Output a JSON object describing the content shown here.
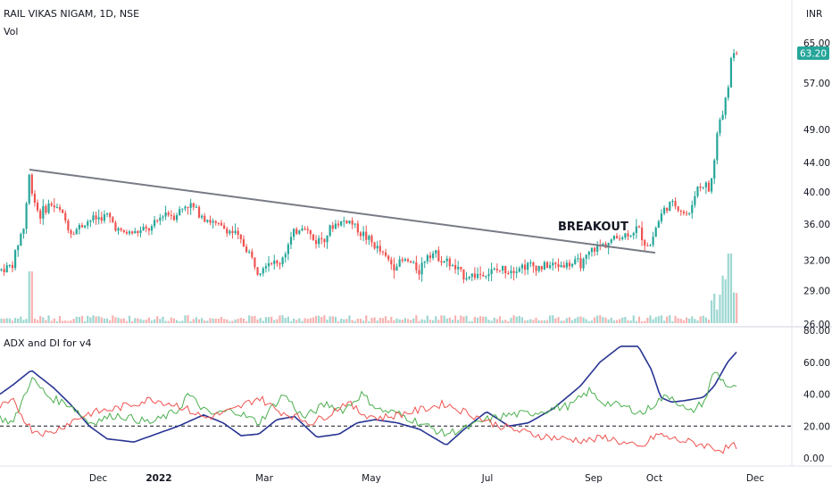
{
  "header": {
    "symbol_line": "RAIL VIKAS NIGAM, 1D, NSE",
    "volume_label": "Vol",
    "currency": "INR"
  },
  "indicator": {
    "title": "ADX and DI for v4"
  },
  "price_axis": {
    "ticks": [
      "65.00",
      "57.00",
      "49.00",
      "44.00",
      "40.00",
      "36.00",
      "32.00",
      "29.00",
      "26.00"
    ],
    "tick_values": [
      65,
      57,
      49,
      44,
      40,
      36,
      32,
      29,
      26
    ],
    "last_price": "63.20"
  },
  "adx_axis": {
    "ticks": [
      "80.00",
      "60.00",
      "40.00",
      "20.00",
      "0.00"
    ],
    "tick_values": [
      80,
      60,
      40,
      20,
      0
    ]
  },
  "time_axis": {
    "ticks": [
      "Dec",
      "2022",
      "Mar",
      "May",
      "Jul",
      "Sep",
      "Oct",
      "Dec"
    ]
  },
  "annotation": {
    "text": "BREAKOUT"
  },
  "colors": {
    "up": "#26a69a",
    "down": "#ef5350",
    "trendline": "#787b86",
    "adx": "#283593",
    "di_plus": "#4caf50",
    "di_minus": "#ef5350",
    "price_tag": "#26a69a"
  },
  "chart_data": {
    "type": "candlestick",
    "title": "RAIL VIKAS NIGAM, 1D, NSE",
    "price_range": [
      26,
      67
    ],
    "price_scale": "log",
    "price_waypoints": [
      [
        0,
        31.0
      ],
      [
        14,
        31.5
      ],
      [
        22,
        34.5
      ],
      [
        28,
        36.0
      ],
      [
        32,
        42.5
      ],
      [
        36,
        40.0
      ],
      [
        44,
        37.0
      ],
      [
        56,
        38.5
      ],
      [
        68,
        37.5
      ],
      [
        80,
        35.0
      ],
      [
        100,
        36.5
      ],
      [
        120,
        37.0
      ],
      [
        135,
        35.0
      ],
      [
        150,
        35.0
      ],
      [
        170,
        35.5
      ],
      [
        185,
        37.5
      ],
      [
        195,
        37.0
      ],
      [
        210,
        38.5
      ],
      [
        222,
        37.5
      ],
      [
        240,
        36.0
      ],
      [
        262,
        35.0
      ],
      [
        278,
        33.0
      ],
      [
        288,
        31.0
      ],
      [
        300,
        32.0
      ],
      [
        312,
        31.5
      ],
      [
        330,
        35.0
      ],
      [
        340,
        36.0
      ],
      [
        352,
        34.0
      ],
      [
        362,
        34.5
      ],
      [
        375,
        36.0
      ],
      [
        390,
        36.5
      ],
      [
        400,
        35.5
      ],
      [
        415,
        34.0
      ],
      [
        430,
        32.5
      ],
      [
        440,
        31.5
      ],
      [
        455,
        32.0
      ],
      [
        470,
        31.0
      ],
      [
        480,
        33.0
      ],
      [
        490,
        32.5
      ],
      [
        505,
        31.5
      ],
      [
        518,
        30.5
      ],
      [
        530,
        30.5
      ],
      [
        545,
        30.7
      ],
      [
        560,
        31.0
      ],
      [
        575,
        31.2
      ],
      [
        590,
        31.5
      ],
      [
        605,
        31.3
      ],
      [
        620,
        31.5
      ],
      [
        640,
        31.6
      ],
      [
        655,
        31.8
      ],
      [
        662,
        33.0
      ],
      [
        672,
        33.5
      ],
      [
        682,
        34.0
      ],
      [
        692,
        34.5
      ],
      [
        702,
        34.8
      ],
      [
        715,
        35.5
      ],
      [
        722,
        34.0
      ],
      [
        728,
        33.5
      ],
      [
        736,
        36.0
      ],
      [
        745,
        38.0
      ],
      [
        755,
        38.5
      ],
      [
        765,
        37.5
      ],
      [
        772,
        37.0
      ],
      [
        780,
        40.5
      ],
      [
        790,
        41.0
      ],
      [
        795,
        40.0
      ],
      [
        800,
        44.0
      ],
      [
        805,
        50.0
      ],
      [
        810,
        52.0
      ],
      [
        815,
        55.0
      ],
      [
        820,
        63.5
      ],
      [
        826,
        63.2
      ]
    ],
    "trendline": {
      "start": [
        "Oct 2021",
        43.0
      ],
      "end": [
        "Oct 2022",
        32.8
      ]
    },
    "last_price": 63.2,
    "series": [
      {
        "name": "ADX",
        "range": [
          0,
          80
        ],
        "points": [
          [
            0,
            40
          ],
          [
            15,
            46
          ],
          [
            35,
            55
          ],
          [
            60,
            44
          ],
          [
            80,
            33
          ],
          [
            100,
            20
          ],
          [
            120,
            12
          ],
          [
            150,
            10
          ],
          [
            175,
            15
          ],
          [
            200,
            20
          ],
          [
            228,
            27
          ],
          [
            250,
            22
          ],
          [
            270,
            14
          ],
          [
            290,
            15
          ],
          [
            310,
            24
          ],
          [
            330,
            26
          ],
          [
            355,
            13
          ],
          [
            380,
            15
          ],
          [
            400,
            22
          ],
          [
            420,
            24
          ],
          [
            445,
            22
          ],
          [
            470,
            18
          ],
          [
            500,
            8
          ],
          [
            520,
            18
          ],
          [
            545,
            29
          ],
          [
            570,
            20
          ],
          [
            592,
            22
          ],
          [
            620,
            31
          ],
          [
            650,
            45
          ],
          [
            672,
            60
          ],
          [
            695,
            70
          ],
          [
            715,
            70
          ],
          [
            730,
            55
          ],
          [
            740,
            38
          ],
          [
            752,
            35
          ],
          [
            768,
            36
          ],
          [
            788,
            38
          ],
          [
            800,
            45
          ],
          [
            815,
            60
          ],
          [
            826,
            67
          ]
        ]
      },
      {
        "name": "DI+",
        "range": [
          0,
          80
        ],
        "points": [
          [
            0,
            25
          ],
          [
            15,
            22
          ],
          [
            35,
            50
          ],
          [
            55,
            38
          ],
          [
            80,
            33
          ],
          [
            100,
            22
          ],
          [
            130,
            27
          ],
          [
            170,
            22
          ],
          [
            200,
            30
          ],
          [
            210,
            40
          ],
          [
            235,
            27
          ],
          [
            262,
            30
          ],
          [
            290,
            22
          ],
          [
            305,
            32
          ],
          [
            318,
            40
          ],
          [
            340,
            25
          ],
          [
            365,
            34
          ],
          [
            385,
            30
          ],
          [
            405,
            40
          ],
          [
            425,
            30
          ],
          [
            445,
            28
          ],
          [
            470,
            22
          ],
          [
            498,
            15
          ],
          [
            525,
            19
          ],
          [
            545,
            24
          ],
          [
            570,
            27
          ],
          [
            595,
            28
          ],
          [
            620,
            31
          ],
          [
            640,
            33
          ],
          [
            660,
            42
          ],
          [
            675,
            35
          ],
          [
            700,
            32
          ],
          [
            720,
            28
          ],
          [
            740,
            37
          ],
          [
            752,
            39
          ],
          [
            772,
            28
          ],
          [
            790,
            36
          ],
          [
            800,
            55
          ],
          [
            815,
            45
          ],
          [
            826,
            43
          ]
        ]
      },
      {
        "name": "DI-",
        "range": [
          0,
          80
        ],
        "points": [
          [
            0,
            32
          ],
          [
            15,
            35
          ],
          [
            35,
            18
          ],
          [
            55,
            15
          ],
          [
            80,
            23
          ],
          [
            100,
            28
          ],
          [
            130,
            31
          ],
          [
            170,
            37
          ],
          [
            200,
            33
          ],
          [
            230,
            25
          ],
          [
            262,
            30
          ],
          [
            290,
            38
          ],
          [
            310,
            30
          ],
          [
            330,
            26
          ],
          [
            350,
            22
          ],
          [
            370,
            28
          ],
          [
            388,
            35
          ],
          [
            405,
            28
          ],
          [
            425,
            25
          ],
          [
            445,
            27
          ],
          [
            470,
            30
          ],
          [
            498,
            34
          ],
          [
            525,
            28
          ],
          [
            550,
            22
          ],
          [
            580,
            17
          ],
          [
            605,
            14
          ],
          [
            630,
            12
          ],
          [
            660,
            11
          ],
          [
            680,
            13
          ],
          [
            700,
            9
          ],
          [
            718,
            6
          ],
          [
            736,
            15
          ],
          [
            752,
            12
          ],
          [
            772,
            10
          ],
          [
            790,
            8
          ],
          [
            808,
            5
          ],
          [
            826,
            8
          ]
        ]
      }
    ]
  }
}
